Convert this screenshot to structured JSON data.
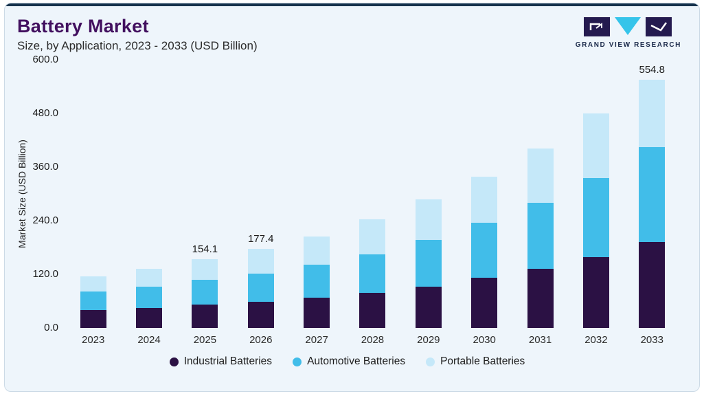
{
  "header": {
    "title": "Battery Market",
    "subtitle": "Size, by Application, 2023 - 2033 (USD Billion)",
    "logo_text": "GRAND VIEW RESEARCH"
  },
  "chart_data": {
    "type": "bar",
    "stacked": true,
    "title": "Battery Market Size, by Application, 2023 - 2033 (USD Billion)",
    "ylabel": "Market Size (USD Billion)",
    "ylim": [
      0,
      600
    ],
    "grid": false,
    "legend_position": "bottom",
    "ytick_values": [
      0,
      120,
      240,
      360,
      480,
      600
    ],
    "ytick_labels": [
      "0.0",
      "120.0",
      "240.0",
      "360.0",
      "480.0",
      "600.0"
    ],
    "categories": [
      "2023",
      "2024",
      "2025",
      "2026",
      "2027",
      "2028",
      "2029",
      "2030",
      "2031",
      "2032",
      "2033"
    ],
    "series": [
      {
        "name": "Industrial Batteries",
        "color": "#2b1144",
        "values": [
          40,
          45,
          52,
          59,
          68,
          79,
          93,
          112,
          132,
          158,
          192
        ]
      },
      {
        "name": "Automotive Batteries",
        "color": "#41bde9",
        "values": [
          42,
          47,
          55,
          63,
          73,
          86,
          104,
          124,
          148,
          177,
          213
        ]
      },
      {
        "name": "Portable Batteries",
        "color": "#c5e8f9",
        "values": [
          33,
          40,
          47.1,
          55.4,
          64,
          78,
          90,
          102,
          121,
          145,
          149.8
        ]
      }
    ],
    "total_labels": [
      "",
      "",
      "154.1",
      "177.4",
      "",
      "",
      "",
      "",
      "",
      "",
      "554.8"
    ]
  },
  "colors": {
    "card_bg": "#eef5fb",
    "card_border": "#ccdae6",
    "top_accent": "#16324c",
    "title": "#42105f",
    "logo_dark": "#241a4f",
    "logo_cyan": "#35c4ea"
  }
}
